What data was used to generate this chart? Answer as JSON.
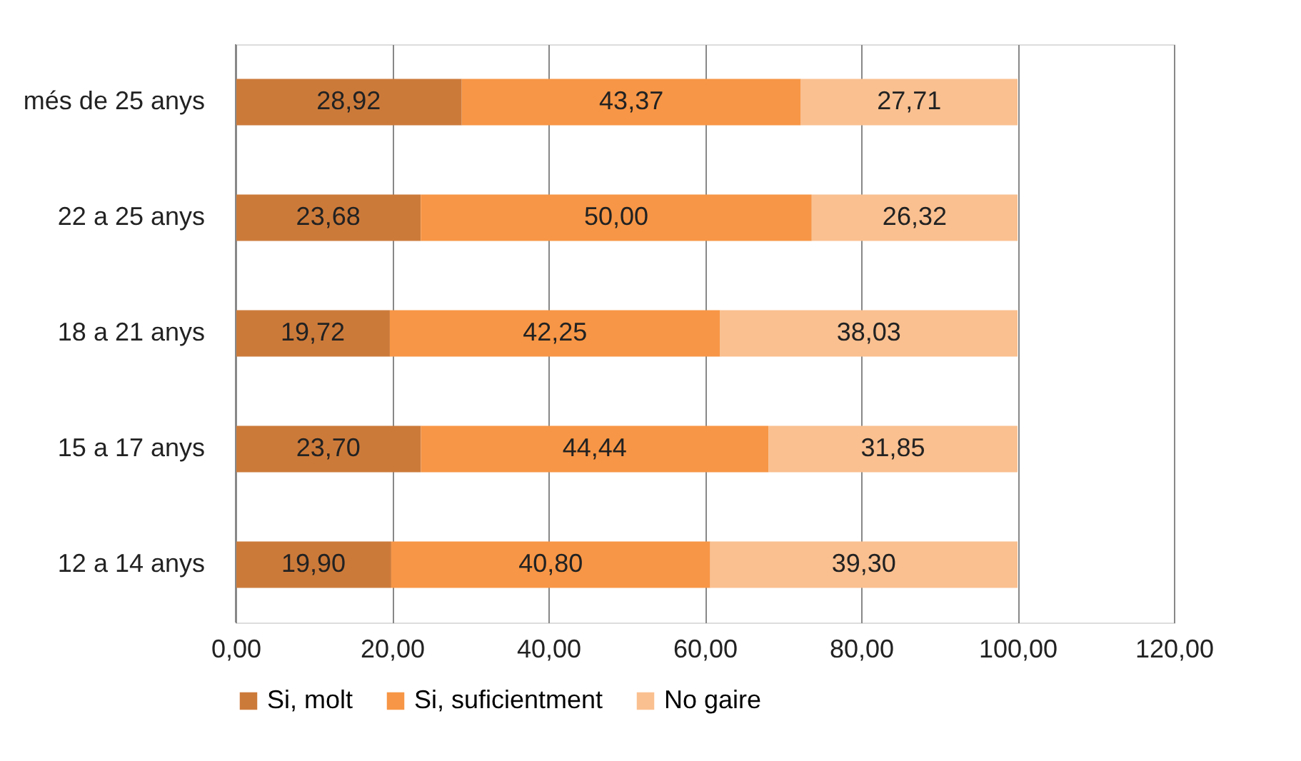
{
  "chart_data": {
    "type": "bar",
    "orientation": "horizontal",
    "stacked": true,
    "categories": [
      "més de 25 anys",
      "22 a 25 anys",
      "18 a 21 anys",
      "15 a 17 anys",
      "12 a 14 anys"
    ],
    "series": [
      {
        "name": "Si, molt",
        "color": "#cc7a3a",
        "values": [
          28.92,
          23.68,
          19.72,
          23.7,
          19.9
        ],
        "value_labels": [
          "28,92",
          "23,68",
          "19,72",
          "23,70",
          "19,90"
        ]
      },
      {
        "name": "Si, suficientment",
        "color": "#f79646",
        "values": [
          43.37,
          50.0,
          42.25,
          44.44,
          40.8
        ],
        "value_labels": [
          "43,37",
          "50,00",
          "42,25",
          "44,44",
          "40,80"
        ]
      },
      {
        "name": "No gaire",
        "color": "#fac090",
        "values": [
          27.71,
          26.32,
          38.03,
          31.85,
          39.3
        ],
        "value_labels": [
          "27,71",
          "26,32",
          "38,03",
          "31,85",
          "39,30"
        ]
      }
    ],
    "xlim": [
      0,
      120
    ],
    "xticks": [
      {
        "value": 0,
        "label": "0,00"
      },
      {
        "value": 20,
        "label": "20,00"
      },
      {
        "value": 40,
        "label": "40,00"
      },
      {
        "value": 60,
        "label": "60,00"
      },
      {
        "value": 80,
        "label": "80,00"
      },
      {
        "value": 100,
        "label": "100,00"
      },
      {
        "value": 120,
        "label": "120,00"
      }
    ],
    "grid": "x",
    "legend": "bottom"
  }
}
